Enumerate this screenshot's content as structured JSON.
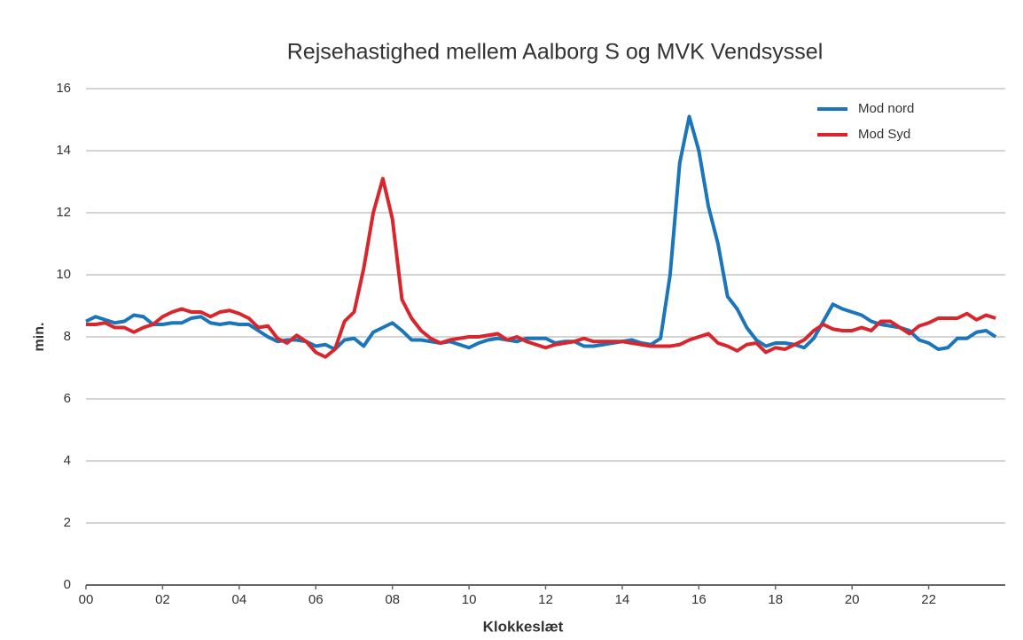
{
  "chart_data": {
    "type": "line",
    "title": "Rejsehastighed mellem Aalborg S og MVK Vendsyssel",
    "x_label": "Klokkeslæt",
    "y_label": "min.",
    "x": [
      0,
      0.25,
      0.5,
      0.75,
      1,
      1.25,
      1.5,
      1.75,
      2,
      2.25,
      2.5,
      2.75,
      3,
      3.25,
      3.5,
      3.75,
      4,
      4.25,
      4.5,
      4.75,
      5,
      5.25,
      5.5,
      5.75,
      6,
      6.25,
      6.5,
      6.75,
      7,
      7.25,
      7.5,
      7.75,
      8,
      8.25,
      8.5,
      8.75,
      9,
      9.25,
      9.5,
      9.75,
      10,
      10.25,
      10.5,
      10.75,
      11,
      11.25,
      11.5,
      11.75,
      12,
      12.25,
      12.5,
      12.75,
      13,
      13.25,
      13.5,
      13.75,
      14,
      14.25,
      14.5,
      14.75,
      15,
      15.25,
      15.5,
      15.75,
      16,
      16.25,
      16.5,
      16.75,
      17,
      17.25,
      17.5,
      17.75,
      18,
      18.25,
      18.5,
      18.75,
      19,
      19.25,
      19.5,
      19.75,
      20,
      20.25,
      20.5,
      20.75,
      21,
      21.25,
      21.5,
      21.75,
      22,
      22.25,
      22.5,
      22.75,
      23,
      23.25,
      23.5,
      23.75
    ],
    "series": [
      {
        "name": "Mod nord",
        "color": "#1b75bb",
        "values": [
          8.5,
          8.65,
          8.55,
          8.45,
          8.5,
          8.7,
          8.65,
          8.4,
          8.4,
          8.45,
          8.45,
          8.6,
          8.65,
          8.45,
          8.4,
          8.45,
          8.4,
          8.4,
          8.2,
          8.0,
          7.85,
          7.9,
          7.9,
          7.85,
          7.7,
          7.75,
          7.6,
          7.9,
          7.95,
          7.7,
          8.15,
          8.3,
          8.45,
          8.2,
          7.9,
          7.9,
          7.85,
          7.8,
          7.85,
          7.75,
          7.65,
          7.8,
          7.9,
          7.95,
          7.9,
          7.85,
          7.95,
          7.95,
          7.95,
          7.8,
          7.85,
          7.85,
          7.7,
          7.7,
          7.75,
          7.8,
          7.85,
          7.9,
          7.8,
          7.75,
          7.95,
          10.0,
          13.6,
          15.1,
          14.0,
          12.2,
          11.0,
          9.3,
          8.9,
          8.3,
          7.9,
          7.7,
          7.8,
          7.8,
          7.75,
          7.65,
          7.95,
          8.5,
          9.05,
          8.9,
          8.8,
          8.7,
          8.5,
          8.4,
          8.35,
          8.3,
          8.2,
          7.9,
          7.8,
          7.6,
          7.65,
          7.95,
          7.95,
          8.15,
          8.2,
          8.0
        ]
      },
      {
        "name": "Mod Syd",
        "color": "#d8262c",
        "values": [
          8.4,
          8.4,
          8.45,
          8.3,
          8.3,
          8.15,
          8.3,
          8.4,
          8.65,
          8.8,
          8.9,
          8.8,
          8.8,
          8.65,
          8.8,
          8.85,
          8.75,
          8.6,
          8.3,
          8.35,
          7.95,
          7.8,
          8.05,
          7.85,
          7.5,
          7.35,
          7.6,
          8.5,
          8.8,
          10.2,
          12.0,
          13.1,
          11.8,
          9.2,
          8.6,
          8.2,
          7.95,
          7.8,
          7.9,
          7.95,
          8.0,
          8.0,
          8.05,
          8.1,
          7.9,
          8.0,
          7.85,
          7.75,
          7.65,
          7.75,
          7.8,
          7.85,
          7.95,
          7.85,
          7.85,
          7.85,
          7.85,
          7.8,
          7.75,
          7.7,
          7.7,
          7.7,
          7.75,
          7.9,
          8.0,
          8.1,
          7.8,
          7.7,
          7.55,
          7.75,
          7.8,
          7.5,
          7.65,
          7.6,
          7.75,
          7.9,
          8.2,
          8.4,
          8.25,
          8.2,
          8.2,
          8.3,
          8.2,
          8.5,
          8.5,
          8.3,
          8.1,
          8.35,
          8.45,
          8.6,
          8.6,
          8.6,
          8.75,
          8.55,
          8.7,
          8.6
        ]
      }
    ],
    "xlim": [
      0,
      24
    ],
    "ylim": [
      0,
      16
    ],
    "xticks": [
      {
        "value": 0,
        "label": "00"
      },
      {
        "value": 2,
        "label": "02"
      },
      {
        "value": 4,
        "label": "04"
      },
      {
        "value": 6,
        "label": "06"
      },
      {
        "value": 8,
        "label": "08"
      },
      {
        "value": 10,
        "label": "10"
      },
      {
        "value": 12,
        "label": "12"
      },
      {
        "value": 14,
        "label": "14"
      },
      {
        "value": 16,
        "label": "16"
      },
      {
        "value": 18,
        "label": "18"
      },
      {
        "value": 20,
        "label": "20"
      },
      {
        "value": 22,
        "label": "22"
      }
    ],
    "yticks": [
      0,
      2,
      4,
      6,
      8,
      10,
      12,
      14,
      16
    ],
    "grid": true,
    "legend": "upper-right"
  }
}
